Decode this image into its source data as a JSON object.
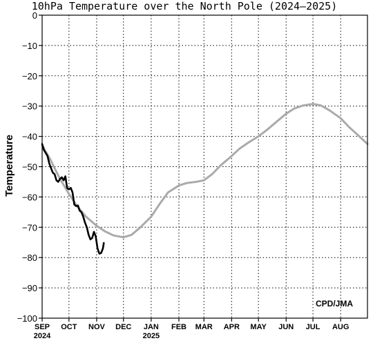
{
  "chart_data": {
    "type": "line",
    "title": "10hPa Temperature over the North Pole (2024–2025)",
    "ylabel": "Temperature",
    "credit": "CPD/JMA",
    "ylim": [
      -100,
      0
    ],
    "yticks": [
      0,
      -10,
      -20,
      -30,
      -40,
      -50,
      -60,
      -70,
      -80,
      -90,
      -100
    ],
    "xlim": [
      "2024-09-01",
      "2025-08-31"
    ],
    "xticks": [
      {
        "date": "2024-09-01",
        "label": "SEP",
        "year": "2024"
      },
      {
        "date": "2024-10-01",
        "label": "OCT",
        "year": ""
      },
      {
        "date": "2024-11-01",
        "label": "NOV",
        "year": ""
      },
      {
        "date": "2024-12-01",
        "label": "DEC",
        "year": ""
      },
      {
        "date": "2025-01-01",
        "label": "JAN",
        "year": "2025"
      },
      {
        "date": "2025-02-01",
        "label": "FEB",
        "year": ""
      },
      {
        "date": "2025-03-01",
        "label": "MAR",
        "year": ""
      },
      {
        "date": "2025-04-01",
        "label": "APR",
        "year": ""
      },
      {
        "date": "2025-05-01",
        "label": "MAY",
        "year": ""
      },
      {
        "date": "2025-06-01",
        "label": "JUN",
        "year": ""
      },
      {
        "date": "2025-07-01",
        "label": "JUL",
        "year": ""
      },
      {
        "date": "2025-08-01",
        "label": "AUG",
        "year": ""
      }
    ],
    "grid": true,
    "series": [
      {
        "color": "#aaaaaa",
        "points": [
          [
            "2024-09-01",
            -43
          ],
          [
            "2024-09-10",
            -47.5
          ],
          [
            "2024-09-20",
            -53.5
          ],
          [
            "2024-10-01",
            -59
          ],
          [
            "2024-10-10",
            -63
          ],
          [
            "2024-10-20",
            -66.5
          ],
          [
            "2024-11-01",
            -69.5
          ],
          [
            "2024-11-10",
            -71.3
          ],
          [
            "2024-11-20",
            -72.7
          ],
          [
            "2024-12-01",
            -73.3
          ],
          [
            "2024-12-10",
            -72.5
          ],
          [
            "2024-12-20",
            -70
          ],
          [
            "2025-01-01",
            -66.5
          ],
          [
            "2025-01-10",
            -62.5
          ],
          [
            "2025-01-20",
            -58.5
          ],
          [
            "2025-02-01",
            -56.2
          ],
          [
            "2025-02-10",
            -55.4
          ],
          [
            "2025-02-20",
            -55
          ],
          [
            "2025-03-01",
            -54.5
          ],
          [
            "2025-03-10",
            -52.5
          ],
          [
            "2025-03-20",
            -49.5
          ],
          [
            "2025-04-01",
            -46.5
          ],
          [
            "2025-04-10",
            -44
          ],
          [
            "2025-04-20",
            -42
          ],
          [
            "2025-05-01",
            -40
          ],
          [
            "2025-05-10",
            -38
          ],
          [
            "2025-05-20",
            -35.5
          ],
          [
            "2025-06-01",
            -32.5
          ],
          [
            "2025-06-10",
            -30.8
          ],
          [
            "2025-06-20",
            -29.8
          ],
          [
            "2025-07-01",
            -29.3
          ],
          [
            "2025-07-10",
            -29.8
          ],
          [
            "2025-07-20",
            -31.5
          ],
          [
            "2025-08-01",
            -34
          ],
          [
            "2025-08-10",
            -36.8
          ],
          [
            "2025-08-20",
            -39.5
          ],
          [
            "2025-08-31",
            -42.5
          ]
        ]
      },
      {
        "color": "#000000",
        "points": [
          [
            "2024-09-01",
            -42.5
          ],
          [
            "2024-09-03",
            -44.5
          ],
          [
            "2024-09-05",
            -45.5
          ],
          [
            "2024-09-07",
            -46.5
          ],
          [
            "2024-09-09",
            -49
          ],
          [
            "2024-09-11",
            -50.5
          ],
          [
            "2024-09-13",
            -52
          ],
          [
            "2024-09-15",
            -52.5
          ],
          [
            "2024-09-17",
            -54.5
          ],
          [
            "2024-09-19",
            -55
          ],
          [
            "2024-09-21",
            -54
          ],
          [
            "2024-09-23",
            -53.5
          ],
          [
            "2024-09-25",
            -54.5
          ],
          [
            "2024-09-27",
            -53.2
          ],
          [
            "2024-09-29",
            -57
          ],
          [
            "2024-10-01",
            -57.5
          ],
          [
            "2024-10-03",
            -57
          ],
          [
            "2024-10-05",
            -58.5
          ],
          [
            "2024-10-07",
            -62.5
          ],
          [
            "2024-10-09",
            -63
          ],
          [
            "2024-10-11",
            -62.8
          ],
          [
            "2024-10-13",
            -64.5
          ],
          [
            "2024-10-15",
            -65
          ],
          [
            "2024-10-17",
            -66.5
          ],
          [
            "2024-10-19",
            -68.5
          ],
          [
            "2024-10-21",
            -70
          ],
          [
            "2024-10-23",
            -72.5
          ],
          [
            "2024-10-25",
            -74
          ],
          [
            "2024-10-27",
            -73.5
          ],
          [
            "2024-10-29",
            -71.5
          ],
          [
            "2024-10-31",
            -73
          ],
          [
            "2024-11-02",
            -77
          ],
          [
            "2024-11-04",
            -78.7
          ],
          [
            "2024-11-06",
            -78.5
          ],
          [
            "2024-11-08",
            -77
          ],
          [
            "2024-11-09",
            -75.2
          ]
        ]
      }
    ]
  }
}
